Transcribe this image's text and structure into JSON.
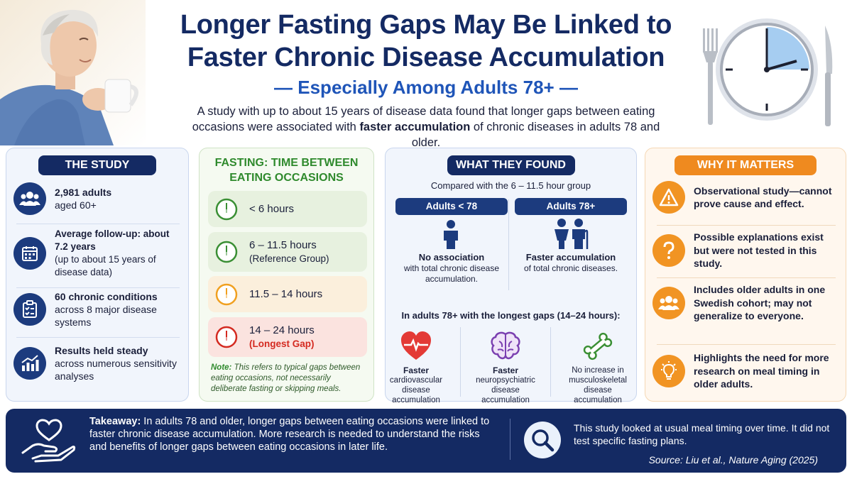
{
  "header": {
    "title_line1": "Longer Fasting Gaps May Be Linked to",
    "title_line2": "Faster Chronic Disease Accumulation",
    "subtitle": "— Especially Among Adults 78+ —",
    "intro_part1": "A study with up to about 15 years of disease data found that longer gaps between eating occasions were associated with ",
    "intro_bold": "faster accumulation",
    "intro_part2": " of chronic diseases in adults 78 and older."
  },
  "study": {
    "heading": "THE STUDY",
    "items": [
      {
        "icon": "people-icon",
        "strong": "2,981 adults",
        "rest": "aged 60+"
      },
      {
        "icon": "calendar-icon",
        "strong": "Average follow-up: about 7.2 years",
        "rest": "(up to about 15 years of disease data)"
      },
      {
        "icon": "clipboard-icon",
        "strong": "60 chronic conditions",
        "rest": "across 8 major disease systems"
      },
      {
        "icon": "chart-icon",
        "strong": "Results held steady",
        "rest": "across numerous sensitivity analyses"
      }
    ]
  },
  "fasting": {
    "heading_line1": "FASTING: TIME BETWEEN",
    "heading_line2": "EATING OCCASIONS",
    "rows": [
      {
        "label": "< 6 hours",
        "sub": ""
      },
      {
        "label": "6 – 11.5 hours",
        "sub": "(Reference Group)"
      },
      {
        "label": "11.5 – 14 hours",
        "sub": ""
      },
      {
        "label": "14 – 24 hours",
        "sub": "(Longest Gap)"
      }
    ],
    "note_label": "Note:",
    "note_text": " This refers to typical gaps between eating occasions, not necessarily deliberate fasting or skipping meals.",
    "colors": {
      "green": "#3a8f34",
      "orange": "#f0a020",
      "red": "#d42a20"
    }
  },
  "found": {
    "heading": "WHAT THEY FOUND",
    "compare": "Compared with the 6 – 11.5 hour group",
    "under78": {
      "tag": "Adults < 78",
      "strong": "No association",
      "rest": "with total chronic disease accumulation."
    },
    "over78": {
      "tag": "Adults 78+",
      "strong": "Faster accumulation",
      "rest": "of total chronic diseases."
    },
    "longest": "In adults 78+ with the longest gaps (14–24 hours):",
    "outcomes": [
      {
        "icon": "heart-pulse-icon",
        "strong": "Faster",
        "rest": "cardiovascular disease accumulation"
      },
      {
        "icon": "brain-icon",
        "strong": "Faster",
        "rest": "neuropsychiatric disease accumulation"
      },
      {
        "icon": "bone-icon",
        "strong": "",
        "rest": "No increase in musculoskeletal disease accumulation"
      }
    ]
  },
  "why": {
    "heading": "WHY IT MATTERS",
    "items": [
      {
        "icon": "warning-icon",
        "text": "Observational study—cannot prove cause and effect."
      },
      {
        "icon": "question-icon",
        "text": "Possible explanations exist but were not tested in this study."
      },
      {
        "icon": "group-icon",
        "text": "Includes older adults in one Swedish cohort; may not generalize to everyone."
      },
      {
        "icon": "lightbulb-icon",
        "text": "Highlights the need for more research on meal timing in older adults."
      }
    ]
  },
  "footer": {
    "takeaway_label": "Takeaway:",
    "takeaway_text": " In adults 78 and older, longer gaps between eating occasions were linked to faster chronic disease accumulation. More research is needed to understand the risks and benefits of longer gaps between eating occasions in later life.",
    "usual": "This study looked at usual meal timing over time. It did not test specific fasting plans.",
    "source": "Source: Liu et al., Nature Aging (2025)"
  }
}
